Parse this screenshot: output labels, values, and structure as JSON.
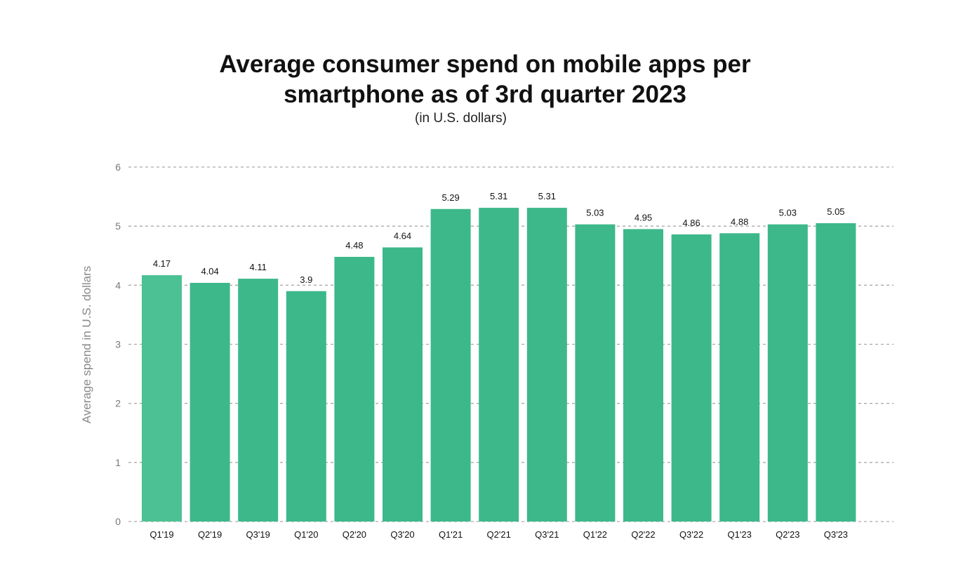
{
  "chart_data": {
    "type": "bar",
    "title": [
      "Average consumer spend on mobile apps per",
      "smartphone as of 3rd quarter 2023"
    ],
    "subtitle": "(in U.S. dollars)",
    "xlabel": "",
    "ylabel": "Average spend in U.S. dollars",
    "ylim": [
      0,
      6
    ],
    "yticks": [
      "0",
      "1",
      "2",
      "3",
      "4",
      "5",
      "6"
    ],
    "grid": true,
    "categories": [
      "Q1'19",
      "Q2'19",
      "Q3'19",
      "Q1'20",
      "Q2'20",
      "Q3'20",
      "Q1'21",
      "Q2'21",
      "Q3'21",
      "Q1'22",
      "Q2'22",
      "Q3'22",
      "Q1'23",
      "Q2'23",
      "Q3'23"
    ],
    "values": [
      4.17,
      4.04,
      4.11,
      3.9,
      4.48,
      4.64,
      5.29,
      5.31,
      5.31,
      5.03,
      4.95,
      4.86,
      4.88,
      5.03,
      5.05
    ],
    "colors": {
      "bar": "#3db88b",
      "first_bar": "#4cc193",
      "grid": "#aaaaaa"
    }
  }
}
